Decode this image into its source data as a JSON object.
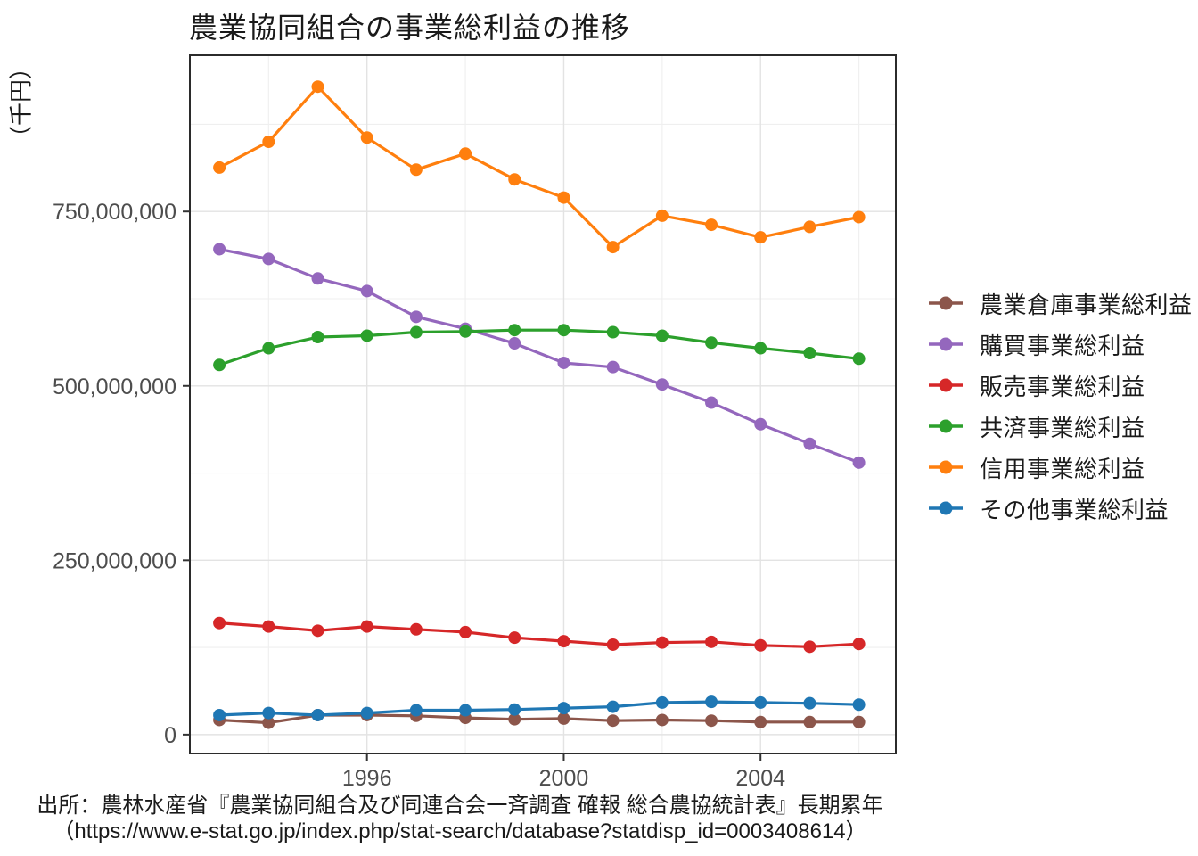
{
  "title": "農業協同組合の事業総利益の推移",
  "y_axis_unit_label": "（千円）",
  "source": {
    "line1": "出所：農林水産省『農業協同組合及び同連合会一斉調査 確報 総合農協統計表』長期累年",
    "line2": "（https://www.e-stat.go.jp/index.php/stat-search/database?statdisp_id=0003408614）"
  },
  "colors": {
    "background": "#ffffff",
    "panel_border": "#2b2b2b",
    "grid_major": "#e3e3e3",
    "grid_minor": "#efefef",
    "tick_mark": "#333333",
    "tick_label": "#4d4d4d",
    "text": "#1a1a1a"
  },
  "chart_data": {
    "type": "line",
    "marker": "circle",
    "grid": true,
    "legend_position": "right",
    "x": [
      1993,
      1994,
      1995,
      1996,
      1997,
      1998,
      1999,
      2000,
      2001,
      2002,
      2003,
      2004,
      2005,
      2006
    ],
    "xlabel": "",
    "ylabel": "（千円）",
    "xlim": [
      1992.4,
      2006.75
    ],
    "ylim": [
      -27000000,
      974000000
    ],
    "x_ticks": [
      {
        "value": 1996,
        "label": "1996"
      },
      {
        "value": 2000,
        "label": "2000"
      },
      {
        "value": 2004,
        "label": "2004"
      }
    ],
    "x_minor": [
      1994,
      1998,
      2002,
      2006
    ],
    "y_ticks": [
      {
        "value": 0,
        "label": "0"
      },
      {
        "value": 250000000,
        "label": "250,000,000"
      },
      {
        "value": 500000000,
        "label": "500,000,000"
      },
      {
        "value": 750000000,
        "label": "750,000,000"
      }
    ],
    "y_minor": [
      125000000,
      375000000,
      625000000,
      875000000
    ],
    "series": [
      {
        "key": "agri-warehouse",
        "name": "農業倉庫事業総利益",
        "color": "#8c564b",
        "values": [
          21000000,
          17000000,
          28000000,
          28000000,
          27000000,
          24000000,
          22000000,
          23000000,
          20000000,
          21000000,
          20000000,
          18000000,
          18000000,
          18000000
        ]
      },
      {
        "key": "purchasing",
        "name": "購買事業総利益",
        "color": "#9467bd",
        "values": [
          696000000,
          682000000,
          654000000,
          636000000,
          599000000,
          582000000,
          561000000,
          533000000,
          527000000,
          502000000,
          476000000,
          445000000,
          417000000,
          390000000
        ]
      },
      {
        "key": "sales",
        "name": "販売事業総利益",
        "color": "#d62728",
        "values": [
          160000000,
          155000000,
          149000000,
          155000000,
          151000000,
          147000000,
          139000000,
          134000000,
          129000000,
          132000000,
          133000000,
          128000000,
          126000000,
          130000000
        ]
      },
      {
        "key": "kyosai",
        "name": "共済事業総利益",
        "color": "#2ca02c",
        "values": [
          530000000,
          554000000,
          570000000,
          572000000,
          577000000,
          578000000,
          580000000,
          580000000,
          577000000,
          572000000,
          562000000,
          554000000,
          547000000,
          539000000
        ]
      },
      {
        "key": "credit",
        "name": "信用事業総利益",
        "color": "#ff7f0e",
        "values": [
          813000000,
          850000000,
          929000000,
          856000000,
          810000000,
          833000000,
          796000000,
          770000000,
          699000000,
          744000000,
          731000000,
          713000000,
          728000000,
          742000000
        ]
      },
      {
        "key": "other",
        "name": "その他事業総利益",
        "color": "#1f77b4",
        "values": [
          28000000,
          31000000,
          28000000,
          31000000,
          35000000,
          35000000,
          36000000,
          38000000,
          40000000,
          46000000,
          47000000,
          46000000,
          45000000,
          43000000
        ]
      }
    ]
  }
}
